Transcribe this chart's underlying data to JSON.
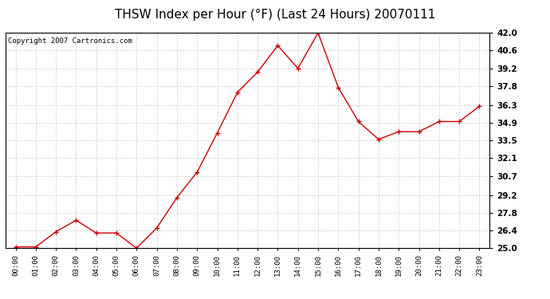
{
  "title": "THSW Index per Hour (°F) (Last 24 Hours) 20070111",
  "copyright_text": "Copyright 2007 Cartronics.com",
  "hours": [
    "00:00",
    "01:00",
    "02:00",
    "03:00",
    "04:00",
    "05:00",
    "06:00",
    "07:00",
    "08:00",
    "09:00",
    "10:00",
    "11:00",
    "12:00",
    "13:00",
    "14:00",
    "15:00",
    "16:00",
    "17:00",
    "18:00",
    "19:00",
    "20:00",
    "21:00",
    "22:00",
    "23:00"
  ],
  "values": [
    25.1,
    25.1,
    26.3,
    27.2,
    26.2,
    26.2,
    25.0,
    26.6,
    29.0,
    31.0,
    34.1,
    37.3,
    38.9,
    41.0,
    39.2,
    42.0,
    37.7,
    35.0,
    33.6,
    34.2,
    34.2,
    35.0,
    35.0,
    36.2
  ],
  "ylim": [
    25.0,
    42.0
  ],
  "yticks": [
    25.0,
    26.4,
    27.8,
    29.2,
    30.7,
    32.1,
    33.5,
    34.9,
    36.3,
    37.8,
    39.2,
    40.6,
    42.0
  ],
  "ytick_labels": [
    "25.0",
    "26.4",
    "27.8",
    "29.2",
    "30.7",
    "32.1",
    "33.5",
    "34.9",
    "36.3",
    "37.8",
    "39.2",
    "40.6",
    "42.0"
  ],
  "line_color": "#cc0000",
  "marker": "+",
  "marker_color": "#cc0000",
  "bg_color": "#ffffff",
  "plot_bg_color": "#ffffff",
  "grid_color": "#cccccc",
  "title_fontsize": 11,
  "copyright_fontsize": 6.5
}
